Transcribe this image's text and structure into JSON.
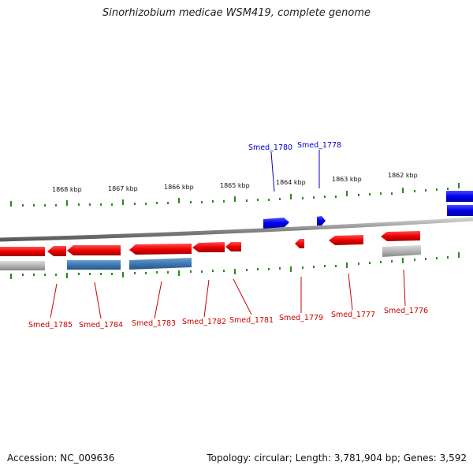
{
  "title": "Sinorhizobium medicae WSM419, complete genome",
  "footer": {
    "accession": "Accession: NC_009636",
    "stats": "Topology: circular; Length: 3,781,904 bp; Genes: 3,592"
  },
  "colors": {
    "forward_gene": "#0000ff",
    "reverse_gene": "#ff0000",
    "forward_label": "#0000cc",
    "reverse_label": "#cc0000",
    "tick": "#2a8a1a",
    "backbone": "#888888",
    "cds_blue": "#3c78b4",
    "cds_gray": "#b4b4b4"
  },
  "ticks": [
    "1868 kbp",
    "1867 kbp",
    "1866 kbp",
    "1865 kbp",
    "1864 kbp",
    "1863 kbp",
    "1862 kbp"
  ],
  "genes": {
    "forward": [
      "Smed_1780",
      "Smed_1778"
    ],
    "reverse": [
      "Smed_1785",
      "Smed_1784",
      "Smed_1783",
      "Smed_1782",
      "Smed_1781",
      "Smed_1779",
      "Smed_1777",
      "Smed_1776"
    ]
  }
}
